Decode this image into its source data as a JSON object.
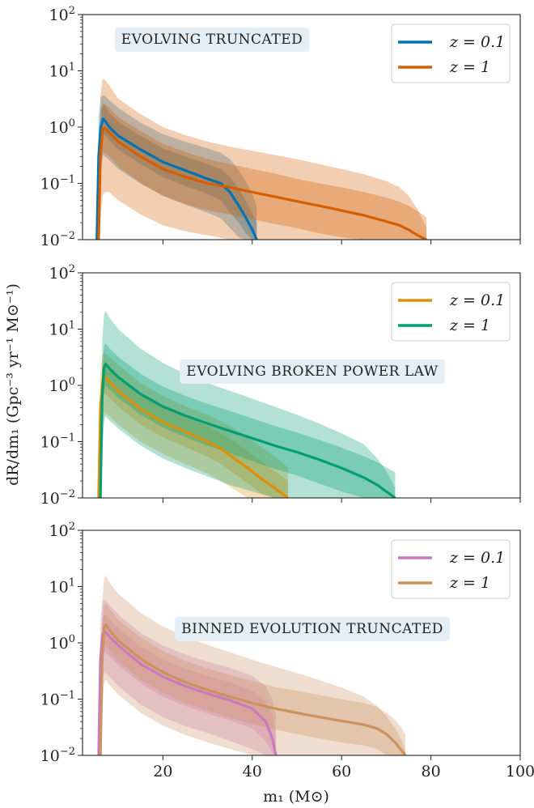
{
  "figure": {
    "ylabel": "dR/dm₁ (Gpc⁻³ yr⁻¹ M⊙⁻¹)",
    "xlabel": "m₁ (M⊙)"
  },
  "chart_data": [
    {
      "type": "line",
      "title": "Evolving Truncated",
      "xlim": [
        2,
        100
      ],
      "ylim": [
        0.01,
        100
      ],
      "yscale": "log",
      "xticks": [
        20,
        40,
        60,
        80,
        100
      ],
      "show_xtick_labels": false,
      "legend": "top-right",
      "series": [
        {
          "name": "z = 0.1",
          "color": "#0173b2",
          "x": [
            5.2,
            5.6,
            6.1,
            6.6,
            7,
            8,
            10,
            15,
            20,
            25,
            30,
            33,
            35,
            37,
            38.5,
            40,
            41
          ],
          "y": [
            0.01,
            0.3,
            1.0,
            1.4,
            1.3,
            1.0,
            0.7,
            0.4,
            0.24,
            0.17,
            0.12,
            0.1,
            0.07,
            0.04,
            0.025,
            0.015,
            0.01
          ],
          "band_inner": {
            "lower": [
              0.01,
              0.12,
              0.45,
              0.75,
              0.72,
              0.58,
              0.4,
              0.22,
              0.13,
              0.09,
              0.065,
              0.05,
              0.03,
              0.02,
              0.013,
              0.01,
              0.01
            ],
            "upper": [
              0.01,
              0.7,
              2.0,
              2.6,
              2.4,
              1.8,
              1.25,
              0.7,
              0.42,
              0.3,
              0.22,
              0.18,
              0.13,
              0.08,
              0.05,
              0.03,
              0.02
            ]
          },
          "band_outer": {
            "lower": [
              0.01,
              0.05,
              0.18,
              0.32,
              0.3,
              0.26,
              0.18,
              0.1,
              0.06,
              0.042,
              0.03,
              0.024,
              0.016,
              0.011,
              0.01,
              0.01,
              0.01
            ],
            "upper": [
              0.01,
              1.6,
              3.4,
              3.7,
              3.6,
              3.0,
              2.2,
              1.2,
              0.75,
              0.55,
              0.42,
              0.35,
              0.27,
              0.17,
              0.11,
              0.065,
              0.04
            ]
          }
        },
        {
          "name": "z = 1",
          "color": "#d55e00",
          "x": [
            5.6,
            6.0,
            6.5,
            7,
            8,
            10,
            15,
            20,
            25,
            30,
            35,
            40,
            45,
            50,
            55,
            60,
            65,
            70,
            73,
            75,
            77,
            79
          ],
          "y": [
            0.01,
            0.3,
            0.95,
            0.95,
            0.8,
            0.55,
            0.3,
            0.18,
            0.13,
            0.1,
            0.085,
            0.07,
            0.058,
            0.048,
            0.04,
            0.033,
            0.027,
            0.021,
            0.018,
            0.015,
            0.012,
            0.01
          ],
          "band_inner": {
            "lower": [
              0.01,
              0.1,
              0.35,
              0.35,
              0.3,
              0.2,
              0.1,
              0.06,
              0.043,
              0.033,
              0.028,
              0.023,
              0.019,
              0.016,
              0.013,
              0.011,
              0.01,
              0.01,
              0.01,
              0.01,
              0.01,
              0.01
            ],
            "upper": [
              0.01,
              0.9,
              2.6,
              2.6,
              2.2,
              1.5,
              0.85,
              0.5,
              0.36,
              0.27,
              0.22,
              0.18,
              0.15,
              0.12,
              0.1,
              0.085,
              0.07,
              0.056,
              0.047,
              0.04,
              0.032,
              0.025
            ]
          },
          "band_outer": {
            "lower": [
              0.01,
              0.02,
              0.06,
              0.07,
              0.07,
              0.05,
              0.028,
              0.018,
              0.014,
              0.012,
              0.01,
              0.01,
              0.01,
              0.01,
              0.01,
              0.01,
              0.01,
              0.01,
              0.01,
              0.01,
              0.01,
              0.01
            ],
            "upper": [
              0.01,
              3.5,
              7.2,
              7.0,
              5.5,
              3.2,
              1.7,
              1.0,
              0.72,
              0.55,
              0.45,
              0.38,
              0.32,
              0.27,
              0.22,
              0.18,
              0.145,
              0.11,
              0.085,
              0.06,
              0.035,
              0.016
            ]
          }
        }
      ]
    },
    {
      "type": "line",
      "title": "Evolving Broken Power Law",
      "xlim": [
        2,
        100
      ],
      "ylim": [
        0.01,
        100
      ],
      "yscale": "log",
      "xticks": [
        20,
        40,
        60,
        80,
        100
      ],
      "show_xtick_labels": false,
      "legend": "top-right",
      "series": [
        {
          "name": "z = 0.1",
          "color": "#de8f05",
          "x": [
            5.6,
            6.0,
            6.5,
            7,
            8,
            10,
            15,
            20,
            25,
            30,
            33,
            36,
            39,
            42,
            45,
            48
          ],
          "y": [
            0.01,
            0.4,
            1.2,
            1.4,
            1.15,
            0.8,
            0.38,
            0.22,
            0.15,
            0.1,
            0.075,
            0.05,
            0.034,
            0.022,
            0.015,
            0.01
          ],
          "band_inner": {
            "lower": [
              0.01,
              0.18,
              0.6,
              0.72,
              0.6,
              0.42,
              0.2,
              0.12,
              0.08,
              0.054,
              0.04,
              0.027,
              0.018,
              0.012,
              0.01,
              0.01
            ],
            "upper": [
              0.01,
              0.8,
              2.3,
              2.7,
              2.2,
              1.5,
              0.72,
              0.42,
              0.28,
              0.19,
              0.14,
              0.1,
              0.068,
              0.045,
              0.03,
              0.02
            ]
          },
          "band_outer": {
            "lower": [
              0.01,
              0.07,
              0.26,
              0.32,
              0.28,
              0.2,
              0.1,
              0.06,
              0.04,
              0.027,
              0.02,
              0.014,
              0.01,
              0.01,
              0.01,
              0.01
            ],
            "upper": [
              0.01,
              1.6,
              3.6,
              3.8,
              3.2,
              2.3,
              1.1,
              0.65,
              0.43,
              0.3,
              0.23,
              0.17,
              0.12,
              0.08,
              0.055,
              0.035
            ]
          }
        },
        {
          "name": "z = 1",
          "color": "#029e73",
          "x": [
            6.0,
            6.4,
            6.8,
            7.2,
            8,
            10,
            15,
            20,
            25,
            30,
            35,
            40,
            45,
            50,
            55,
            60,
            65,
            68,
            70,
            72
          ],
          "y": [
            0.01,
            0.6,
            2.0,
            2.4,
            2.0,
            1.4,
            0.7,
            0.42,
            0.29,
            0.21,
            0.155,
            0.115,
            0.085,
            0.065,
            0.048,
            0.034,
            0.023,
            0.017,
            0.013,
            0.01
          ],
          "band_inner": {
            "lower": [
              0.01,
              0.25,
              0.8,
              1.0,
              0.85,
              0.6,
              0.3,
              0.18,
              0.12,
              0.085,
              0.062,
              0.045,
              0.033,
              0.025,
              0.018,
              0.013,
              0.01,
              0.01,
              0.01,
              0.01
            ],
            "upper": [
              0.01,
              1.6,
              5.0,
              5.6,
              4.6,
              3.2,
              1.6,
              0.95,
              0.65,
              0.47,
              0.35,
              0.26,
              0.19,
              0.145,
              0.108,
              0.078,
              0.055,
              0.043,
              0.035,
              0.028
            ]
          },
          "band_outer": {
            "lower": [
              0.01,
              0.06,
              0.22,
              0.28,
              0.24,
              0.17,
              0.085,
              0.05,
              0.034,
              0.024,
              0.017,
              0.013,
              0.01,
              0.01,
              0.01,
              0.01,
              0.01,
              0.01,
              0.01,
              0.01
            ],
            "upper": [
              0.01,
              6.0,
              18.0,
              21.0,
              16.0,
              10.0,
              4.5,
              2.5,
              1.6,
              1.1,
              0.8,
              0.58,
              0.42,
              0.3,
              0.21,
              0.14,
              0.09,
              0.05,
              0.03,
              0.015
            ]
          }
        }
      ]
    },
    {
      "type": "line",
      "title": "Binned Evolution Truncated",
      "xlim": [
        2,
        100
      ],
      "ylim": [
        0.01,
        100
      ],
      "yscale": "log",
      "xticks": [
        20,
        40,
        60,
        80,
        100
      ],
      "show_xtick_labels": true,
      "legend": "top-right",
      "series": [
        {
          "name": "z = 0.1",
          "color": "#cc78bc",
          "x": [
            5.6,
            6.0,
            6.5,
            7,
            8,
            10,
            15,
            20,
            25,
            30,
            35,
            40,
            43,
            44.5,
            45.3
          ],
          "y": [
            0.01,
            0.5,
            1.4,
            1.6,
            1.3,
            0.9,
            0.42,
            0.25,
            0.17,
            0.125,
            0.095,
            0.068,
            0.04,
            0.02,
            0.01
          ],
          "band_inner": {
            "lower": [
              0.01,
              0.2,
              0.6,
              0.7,
              0.58,
              0.4,
              0.19,
              0.11,
              0.075,
              0.055,
              0.042,
              0.03,
              0.018,
              0.011,
              0.01
            ],
            "upper": [
              0.01,
              1.0,
              2.8,
              3.1,
              2.6,
              1.8,
              0.85,
              0.5,
              0.35,
              0.26,
              0.2,
              0.14,
              0.09,
              0.05,
              0.025
            ]
          },
          "band_outer": {
            "lower": [
              0.01,
              0.08,
              0.25,
              0.3,
              0.25,
              0.17,
              0.08,
              0.048,
              0.033,
              0.025,
              0.018,
              0.013,
              0.01,
              0.01,
              0.01
            ],
            "upper": [
              0.01,
              2.5,
              5.5,
              5.9,
              4.8,
              3.2,
              1.5,
              0.9,
              0.62,
              0.46,
              0.36,
              0.26,
              0.17,
              0.1,
              0.05
            ]
          }
        },
        {
          "name": "z = 1",
          "color": "#ca9161",
          "x": [
            6.0,
            6.4,
            6.8,
            7.2,
            8,
            10,
            15,
            20,
            25,
            30,
            35,
            40,
            45,
            50,
            55,
            60,
            65,
            68,
            70,
            72,
            73.5,
            74.3
          ],
          "y": [
            0.01,
            0.5,
            1.8,
            2.1,
            1.7,
            1.1,
            0.52,
            0.3,
            0.2,
            0.145,
            0.11,
            0.085,
            0.068,
            0.057,
            0.048,
            0.041,
            0.035,
            0.03,
            0.024,
            0.017,
            0.012,
            0.01
          ],
          "band_inner": {
            "lower": [
              0.01,
              0.2,
              0.75,
              0.9,
              0.72,
              0.47,
              0.22,
              0.13,
              0.085,
              0.062,
              0.047,
              0.036,
              0.029,
              0.024,
              0.02,
              0.017,
              0.015,
              0.013,
              0.01,
              0.01,
              0.01,
              0.01
            ],
            "upper": [
              0.01,
              1.4,
              4.4,
              5.0,
              4.0,
              2.6,
              1.25,
              0.72,
              0.48,
              0.35,
              0.27,
              0.21,
              0.165,
              0.14,
              0.118,
              0.1,
              0.085,
              0.072,
              0.058,
              0.042,
              0.03,
              0.024
            ]
          },
          "band_outer": {
            "lower": [
              0.01,
              0.05,
              0.18,
              0.22,
              0.18,
              0.12,
              0.057,
              0.034,
              0.023,
              0.017,
              0.013,
              0.01,
              0.01,
              0.01,
              0.01,
              0.01,
              0.01,
              0.01,
              0.01,
              0.01,
              0.01,
              0.01
            ],
            "upper": [
              0.01,
              5.0,
              14.0,
              16.0,
              12.0,
              7.5,
              3.4,
              1.95,
              1.3,
              0.92,
              0.68,
              0.5,
              0.38,
              0.29,
              0.22,
              0.16,
              0.11,
              0.075,
              0.05,
              0.03,
              0.018,
              0.012
            ]
          }
        }
      ]
    }
  ]
}
